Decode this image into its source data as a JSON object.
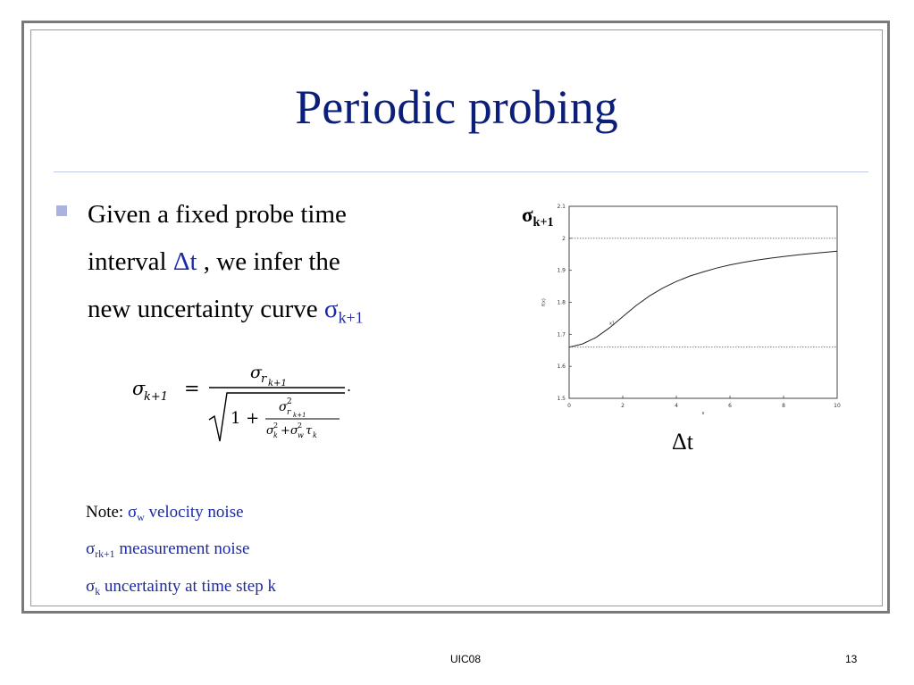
{
  "slide": {
    "title": "Periodic probing",
    "bullet": {
      "line1": "Given a fixed probe time",
      "line2_pre": "interval ",
      "line2_sym": "Δt",
      "line2_post": " , we infer the",
      "line3_pre": "new uncertainty curve ",
      "line3_sym": "σ",
      "line3_sub": "k+1"
    },
    "notes": [
      {
        "prefix": "Note: ",
        "sym": "σ",
        "sub": "w",
        "text": " velocity noise"
      },
      {
        "prefix": "",
        "sym": "σ",
        "sub": "rk+1",
        "text": " measurement noise"
      },
      {
        "prefix": "",
        "sym": "σ",
        "sub": "k",
        "text": " uncertainty at time step k"
      }
    ],
    "formula": {
      "lhs": "σ",
      "lhs_sub": "k+1",
      "equals": "=",
      "num": "σ",
      "num_sub": "r",
      "num_subsub": "k+1",
      "one_plus": "1 +",
      "inner_num": "σ",
      "inner_num_sup": "2",
      "inner_num_sub": "r",
      "inner_num_subsub": "k+1",
      "inner_den": "σ",
      "inner_den_sub": "k",
      "inner_den_sup": "2",
      "inner_den_plus": "+",
      "inner_den2": "σ",
      "inner_den2_sub": "w",
      "inner_den2_sup": "2",
      "inner_den_tau": "τ",
      "inner_den_tau_sub": "k",
      "period": "."
    },
    "chart_labels": {
      "y_sym": "σ",
      "y_sub": "k+1",
      "x_label": "Δt"
    }
  },
  "chart_data": {
    "type": "line",
    "xlabel": "x",
    "ylabel": "f(x)",
    "xlim": [
      0,
      10
    ],
    "ylim": [
      1.5,
      2.1
    ],
    "xticks": [
      0,
      2,
      4,
      6,
      8,
      10
    ],
    "yticks": [
      1.5,
      1.6,
      1.7,
      1.8,
      1.9,
      2,
      2.1
    ],
    "hlines": [
      2.0,
      1.66
    ],
    "annotation": "x1",
    "series": [
      {
        "x": [
          0,
          0.5,
          1,
          1.5,
          2,
          2.5,
          3,
          3.5,
          4,
          4.5,
          5,
          5.5,
          6,
          6.5,
          7,
          7.5,
          8,
          8.5,
          9,
          9.5,
          10
        ],
        "values": [
          1.66,
          1.67,
          1.69,
          1.72,
          1.755,
          1.79,
          1.82,
          1.845,
          1.865,
          1.882,
          1.895,
          1.907,
          1.917,
          1.925,
          1.932,
          1.938,
          1.943,
          1.948,
          1.952,
          1.956,
          1.96
        ]
      }
    ]
  },
  "footer": {
    "center": "UIC08",
    "page": "13"
  }
}
